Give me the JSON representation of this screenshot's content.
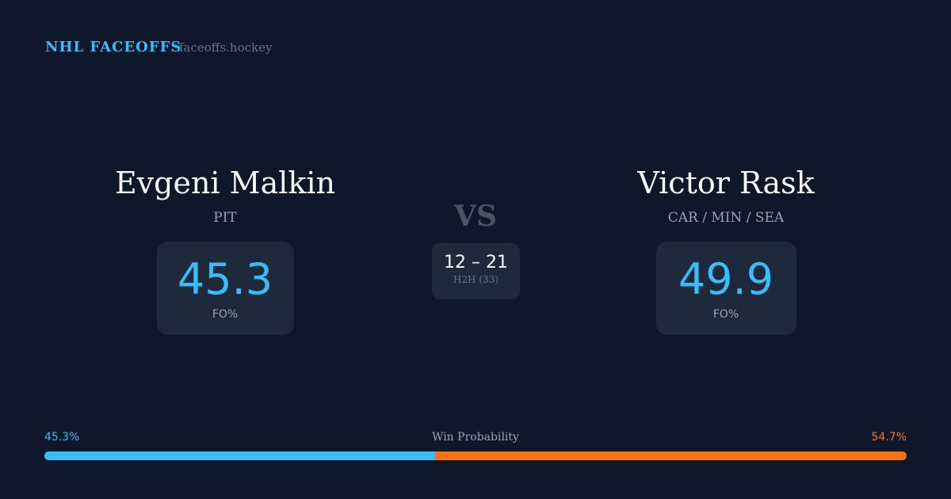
{
  "header": {
    "brand": "NHL FACEOFFS",
    "domain": "faceoffs.hockey"
  },
  "player1": {
    "name": "Evgeni Malkin",
    "team": "PIT",
    "fo_pct": "45.3",
    "fo_label": "FO%"
  },
  "player2": {
    "name": "Victor Rask",
    "team": "CAR / MIN / SEA",
    "fo_pct": "49.9",
    "fo_label": "FO%"
  },
  "versus": {
    "label": "VS",
    "h2h_score": "12 – 21",
    "h2h_label": "H2H (33)"
  },
  "win_probability": {
    "label": "Win Probability",
    "left_label": "45.3%",
    "right_label": "54.7%",
    "left_value": 45.3,
    "right_value": 54.7
  },
  "colors": {
    "background": "#0f172a",
    "accent_blue": "#38bdf8",
    "accent_orange": "#f97316",
    "card": "#1e293b"
  }
}
